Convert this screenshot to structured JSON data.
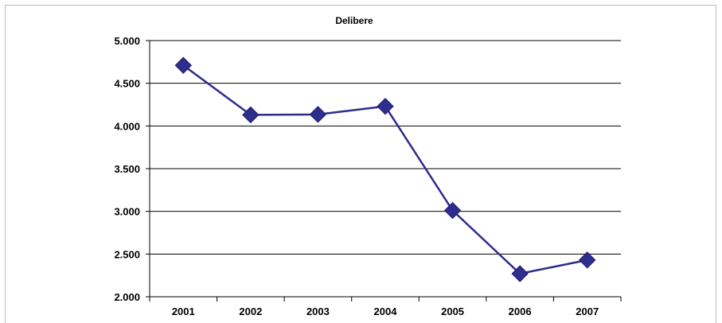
{
  "chart_data": {
    "type": "line",
    "title": "Delibere",
    "xlabel": "",
    "ylabel": "",
    "categories": [
      "2001",
      "2002",
      "2003",
      "2004",
      "2005",
      "2006",
      "2007"
    ],
    "series": [
      {
        "values": [
          4710,
          4130,
          4135,
          4230,
          3010,
          2270,
          2430
        ]
      }
    ],
    "ylim": [
      2000,
      5000
    ],
    "yticks": [
      2000,
      2500,
      3000,
      3500,
      4000,
      4500,
      5000
    ],
    "ytick_labels": [
      "2.000",
      "2.500",
      "3.000",
      "3.500",
      "4.000",
      "4.500",
      "5.000"
    ],
    "grid": true,
    "legend": "none",
    "colors": {
      "line": "#2e2e8c",
      "marker": "#2e2e8c",
      "grid": "#000000",
      "axis": "#000000"
    }
  }
}
